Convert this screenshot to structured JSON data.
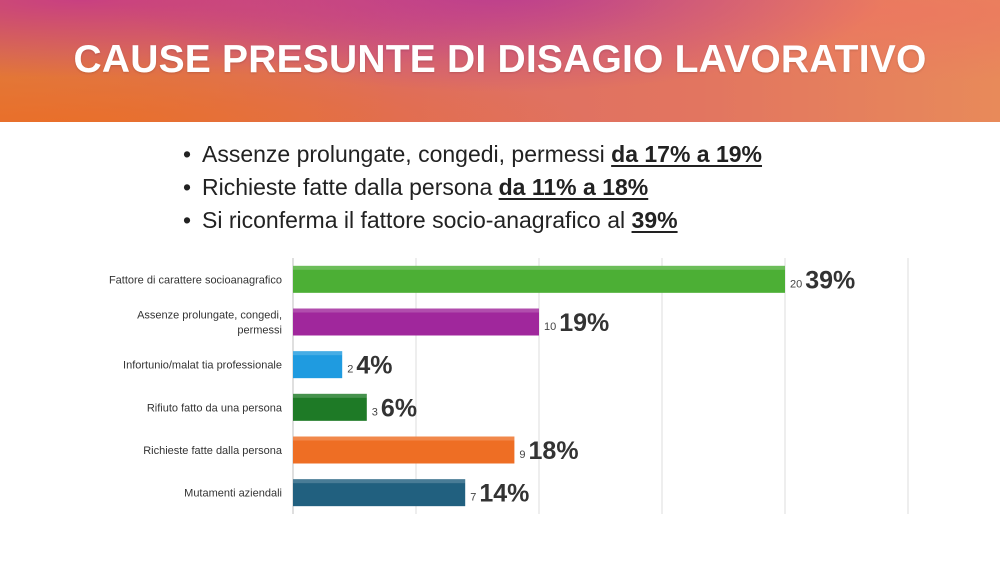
{
  "title": "CAUSE PRESUNTE DI DISAGIO LAVORATIVO",
  "bullets": [
    {
      "text": "Assenze prolungate, congedi, permessi ",
      "bold": "da 17% a 19%"
    },
    {
      "text": "Richieste fatte dalla persona ",
      "bold": "da 11% a 18%"
    },
    {
      "text": "Si riconferma il fattore socio-anagrafico al ",
      "bold": "39%"
    }
  ],
  "chart_data": {
    "type": "bar",
    "orientation": "horizontal",
    "categories": [
      [
        "Fattore di carattere socioanagrafico"
      ],
      [
        "Assenze prolungate, congedi,",
        "permessi"
      ],
      [
        "Infortunio/malat tia professionale"
      ],
      [
        "Rifiuto fatto da una persona"
      ],
      [
        "Richieste fatte dalla persona"
      ],
      [
        "Mutamenti aziendali"
      ]
    ],
    "values": [
      20,
      10,
      2,
      3,
      9,
      7
    ],
    "percent_labels": [
      "39%",
      "19%",
      "4%",
      "6%",
      "18%",
      "14%"
    ],
    "colors": [
      "#4caf35",
      "#a0279c",
      "#1f9be0",
      "#1e7a26",
      "#ee6e24",
      "#21607f"
    ],
    "xlim": [
      0,
      25
    ],
    "grid": true
  }
}
